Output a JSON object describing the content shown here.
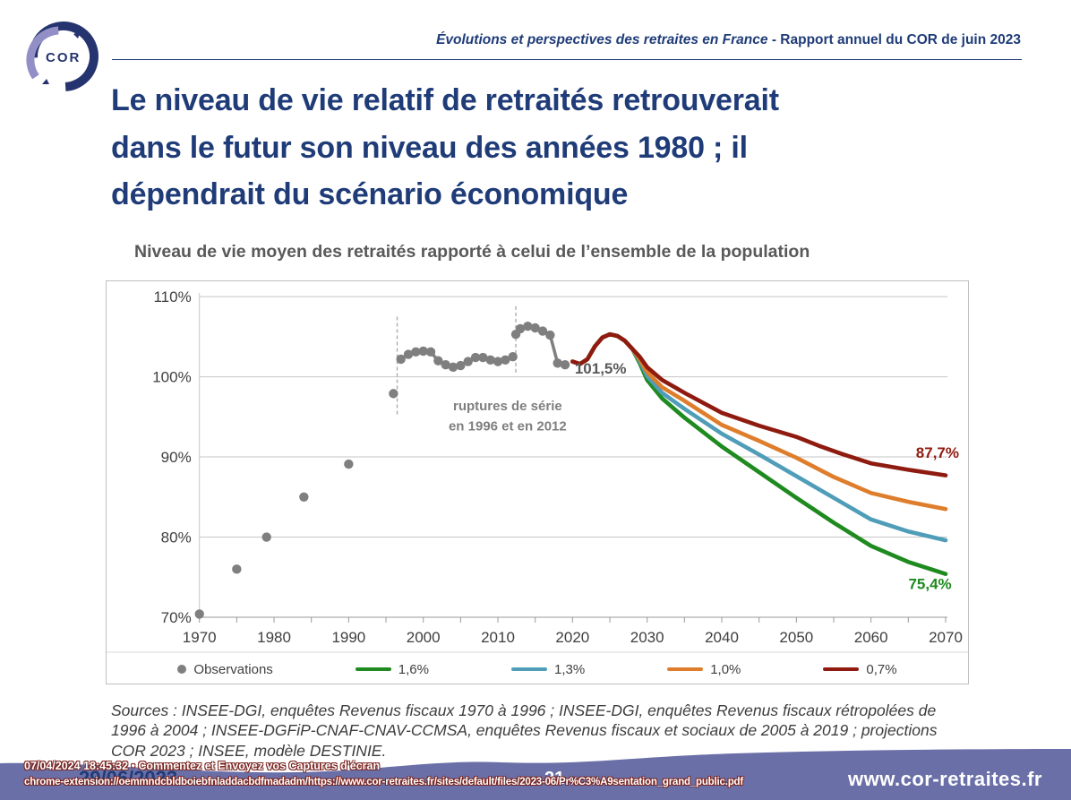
{
  "header": {
    "logo_text": "COR",
    "report_title_italic": "Évolutions et perspectives des retraites en France",
    "report_title_rest": " - Rapport annuel du COR de juin 2023"
  },
  "slide": {
    "title": "Le niveau de vie relatif de retraités retrouverait\ndans le futur son niveau des années 1980 ; il\ndépendrait du scénario économique",
    "chart_heading": "Niveau de vie moyen des retraités rapporté à celui de l’ensemble de la population",
    "sources": "Sources : INSEE-DGI, enquêtes Revenus fiscaux 1970 à 1996 ; INSEE-DGI, enquêtes Revenus fiscaux rétropolées de 1996 à 2004 ; INSEE-DGFiP-CNAF-CNAV-CCMSA, enquêtes Revenus fiscaux et sociaux de 2005 à 2019 ; projections COR 2023 ; INSEE, modèle DESTINIE."
  },
  "footer": {
    "date": "29/06/2023",
    "page_number": "21",
    "website": "www.cor-retraites.fr",
    "wave_color": "#6a6fa8",
    "overlay_line1": "07/04/2024 18:45:32 • Commentez et Envoyez vos Captures d'écran",
    "overlay_line2": "chrome-extension://oemmndcbldboiebfnladdacbdfmadadm/https://www.cor-retraites.fr/sites/default/files/2023-06/Pr%C3%A9sentation_grand_public.pdf"
  },
  "chart_data": {
    "type": "line",
    "title": "Niveau de vie moyen des retraités rapporté à celui de l’ensemble de la population",
    "xlabel": "",
    "ylabel": "",
    "xlim": [
      1970,
      2073
    ],
    "ylim": [
      70,
      110
    ],
    "xticks": [
      1970,
      1980,
      1990,
      2000,
      2010,
      2020,
      2030,
      2040,
      2050,
      2060,
      2070
    ],
    "yticks": [
      70,
      80,
      90,
      100,
      110
    ],
    "ytick_suffix": "%",
    "grid": "horizontal",
    "legend_position": "bottom",
    "observations": {
      "label": "Observations",
      "color": "#7f7f7f",
      "isolated_points": [
        [
          1970,
          70.4
        ],
        [
          1975,
          76.0
        ],
        [
          1979,
          80.0
        ],
        [
          1984,
          85.0
        ],
        [
          1990,
          89.1
        ],
        [
          1996,
          97.9
        ]
      ],
      "runs": [
        [
          [
            1997,
            102.2
          ],
          [
            1998,
            102.8
          ],
          [
            1999,
            103.1
          ],
          [
            2000,
            103.2
          ],
          [
            2001,
            103.1
          ],
          [
            2002,
            102.0
          ],
          [
            2003,
            101.5
          ],
          [
            2004,
            101.2
          ],
          [
            2005,
            101.4
          ],
          [
            2006,
            101.9
          ],
          [
            2007,
            102.4
          ],
          [
            2008,
            102.4
          ],
          [
            2009,
            102.1
          ],
          [
            2010,
            101.9
          ],
          [
            2011,
            102.1
          ],
          [
            2012,
            102.5
          ]
        ],
        [
          [
            2012.4,
            105.3
          ],
          [
            2013,
            106.0
          ],
          [
            2014,
            106.3
          ],
          [
            2015,
            106.1
          ],
          [
            2016,
            105.7
          ],
          [
            2017,
            105.2
          ],
          [
            2018,
            101.7
          ],
          [
            2019,
            101.5
          ]
        ]
      ]
    },
    "scenarios": [
      {
        "label": "1,6%",
        "color": "#1f8a1f",
        "end_label": "75,4%",
        "points": [
          [
            2020,
            101.9
          ],
          [
            2021,
            101.6
          ],
          [
            2022,
            102.2
          ],
          [
            2023,
            103.8
          ],
          [
            2024,
            104.9
          ],
          [
            2025,
            105.3
          ],
          [
            2026,
            105.1
          ],
          [
            2027,
            104.5
          ],
          [
            2028,
            103.5
          ],
          [
            2029,
            101.7
          ],
          [
            2030,
            99.6
          ],
          [
            2032,
            97.3
          ],
          [
            2035,
            94.9
          ],
          [
            2040,
            91.3
          ],
          [
            2045,
            88.1
          ],
          [
            2050,
            84.9
          ],
          [
            2055,
            81.8
          ],
          [
            2060,
            78.9
          ],
          [
            2065,
            76.9
          ],
          [
            2070,
            75.4
          ]
        ]
      },
      {
        "label": "1,3%",
        "color": "#4f9db8",
        "end_label": "79,6%",
        "points": [
          [
            2020,
            101.9
          ],
          [
            2021,
            101.6
          ],
          [
            2022,
            102.2
          ],
          [
            2023,
            103.8
          ],
          [
            2024,
            104.9
          ],
          [
            2025,
            105.3
          ],
          [
            2026,
            105.1
          ],
          [
            2027,
            104.5
          ],
          [
            2028,
            103.5
          ],
          [
            2029,
            102.0
          ],
          [
            2030,
            100.1
          ],
          [
            2032,
            98.0
          ],
          [
            2035,
            96.0
          ],
          [
            2040,
            92.9
          ],
          [
            2045,
            90.3
          ],
          [
            2050,
            87.6
          ],
          [
            2055,
            84.9
          ],
          [
            2060,
            82.2
          ],
          [
            2065,
            80.7
          ],
          [
            2070,
            79.6
          ]
        ]
      },
      {
        "label": "1,0%",
        "color": "#de7e2d",
        "end_label": "83,5%",
        "points": [
          [
            2020,
            101.9
          ],
          [
            2021,
            101.6
          ],
          [
            2022,
            102.2
          ],
          [
            2023,
            103.8
          ],
          [
            2024,
            104.9
          ],
          [
            2025,
            105.3
          ],
          [
            2026,
            105.1
          ],
          [
            2027,
            104.5
          ],
          [
            2028,
            103.5
          ],
          [
            2029,
            102.2
          ],
          [
            2030,
            100.6
          ],
          [
            2032,
            98.7
          ],
          [
            2035,
            97.0
          ],
          [
            2040,
            94.0
          ],
          [
            2045,
            92.0
          ],
          [
            2050,
            89.9
          ],
          [
            2055,
            87.5
          ],
          [
            2060,
            85.5
          ],
          [
            2065,
            84.4
          ],
          [
            2070,
            83.5
          ]
        ]
      },
      {
        "label": "0,7%",
        "color": "#8f1b10",
        "end_label": "87,7%",
        "points": [
          [
            2020,
            101.9
          ],
          [
            2021,
            101.6
          ],
          [
            2022,
            102.2
          ],
          [
            2023,
            103.8
          ],
          [
            2024,
            104.9
          ],
          [
            2025,
            105.3
          ],
          [
            2026,
            105.1
          ],
          [
            2027,
            104.5
          ],
          [
            2028,
            103.5
          ],
          [
            2029,
            102.5
          ],
          [
            2030,
            101.2
          ],
          [
            2032,
            99.6
          ],
          [
            2035,
            98.0
          ],
          [
            2040,
            95.5
          ],
          [
            2045,
            93.9
          ],
          [
            2050,
            92.5
          ],
          [
            2053,
            91.4
          ],
          [
            2056,
            90.4
          ],
          [
            2060,
            89.2
          ],
          [
            2065,
            88.4
          ],
          [
            2070,
            87.7
          ]
        ]
      }
    ],
    "rupture_lines": [
      {
        "year": 1996.5,
        "pct_from": 95.0,
        "pct_to": 107.5
      },
      {
        "year": 2012.4,
        "pct_from": 100.2,
        "pct_to": 108.8
      }
    ],
    "annotations": [
      {
        "text": "101,5%",
        "year": 2020.3,
        "pct": 100.4,
        "color": "#595959",
        "anchor": "start",
        "size": 17
      },
      {
        "text": "87,7%",
        "year": 2071.8,
        "pct": 89.9,
        "color": "#8f1b10",
        "anchor": "end",
        "size": 17
      },
      {
        "text": "75,4%",
        "year": 2070.8,
        "pct": 73.5,
        "color": "#1f8a1f",
        "anchor": "end",
        "size": 17
      },
      {
        "text": "ruptures de série",
        "year": 2011.3,
        "pct": 95.8,
        "color": "#7f7f7f",
        "anchor": "middle",
        "size": 15
      },
      {
        "text": "en 1996 et en 2012",
        "year": 2011.3,
        "pct": 93.3,
        "color": "#7f7f7f",
        "anchor": "middle",
        "size": 15
      }
    ],
    "legend": [
      {
        "label": "Observations",
        "marker": "dot",
        "color": "#7f7f7f"
      },
      {
        "label": "1,6%",
        "marker": "line",
        "color": "#1f8a1f"
      },
      {
        "label": "1,3%",
        "marker": "line",
        "color": "#4f9db8"
      },
      {
        "label": "1,0%",
        "marker": "line",
        "color": "#de7e2d"
      },
      {
        "label": "0,7%",
        "marker": "line",
        "color": "#8f1b10"
      }
    ]
  }
}
